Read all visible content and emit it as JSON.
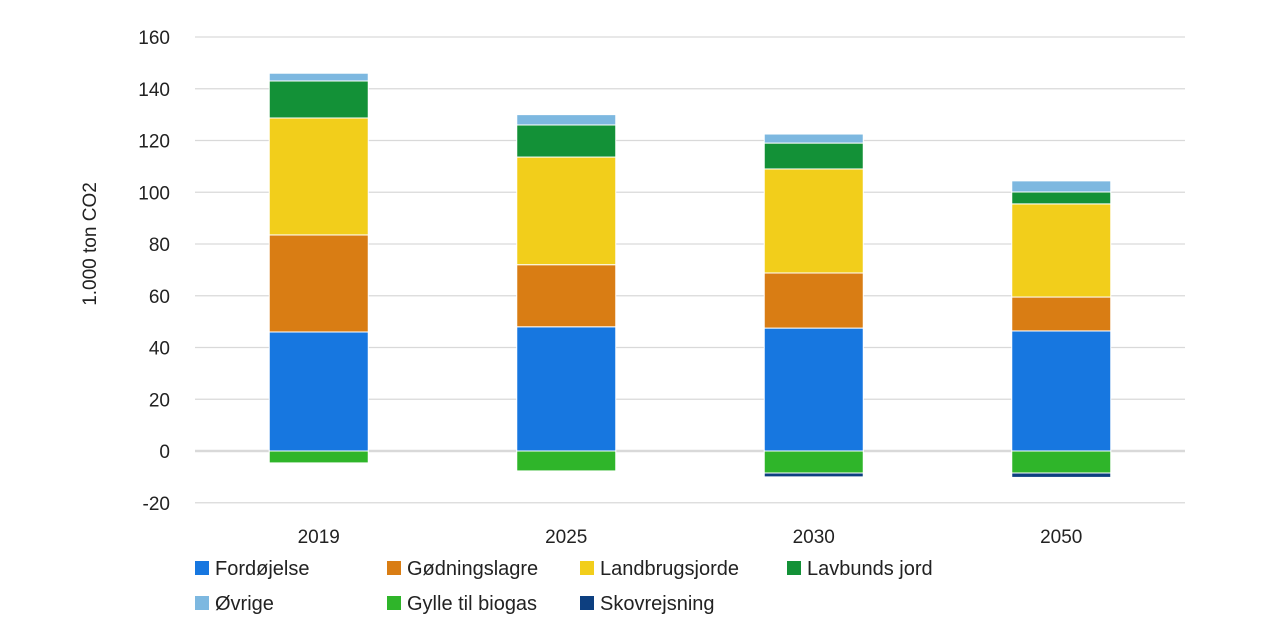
{
  "chart_data": {
    "type": "bar",
    "stacked": true,
    "title": "",
    "xlabel": "",
    "ylabel": "1.000 ton CO2",
    "ylim": [
      -20,
      160
    ],
    "yticks": [
      -20,
      0,
      20,
      40,
      60,
      80,
      100,
      120,
      140,
      160
    ],
    "grid": true,
    "legend_position": "bottom",
    "categories": [
      "2019",
      "2025",
      "2030",
      "2050"
    ],
    "series": [
      {
        "name": "Fordøjelse",
        "color": "#1777E0",
        "values": [
          46,
          48,
          47.5,
          46.4
        ]
      },
      {
        "name": "Gødningslagre",
        "color": "#D97D14",
        "values": [
          37.5,
          24,
          21.3,
          13.1
        ]
      },
      {
        "name": "Landbrugsjorde",
        "color": "#F2CE1B",
        "values": [
          45.2,
          41.6,
          40.2,
          36
        ]
      },
      {
        "name": "Lavbunds jord",
        "color": "#139137",
        "values": [
          14.3,
          12.4,
          10,
          4.6
        ]
      },
      {
        "name": "Øvrige",
        "color": "#7DB8E0",
        "values": [
          3,
          4,
          3.5,
          4.3
        ]
      },
      {
        "name": "Gylle til biogas",
        "color": "#2FB52A",
        "values": [
          -4.6,
          -7.7,
          -8.5,
          -8.5
        ]
      },
      {
        "name": "Skovrejsning",
        "color": "#0D3F80",
        "values": [
          0,
          0,
          -1.5,
          -1.7
        ]
      }
    ]
  }
}
